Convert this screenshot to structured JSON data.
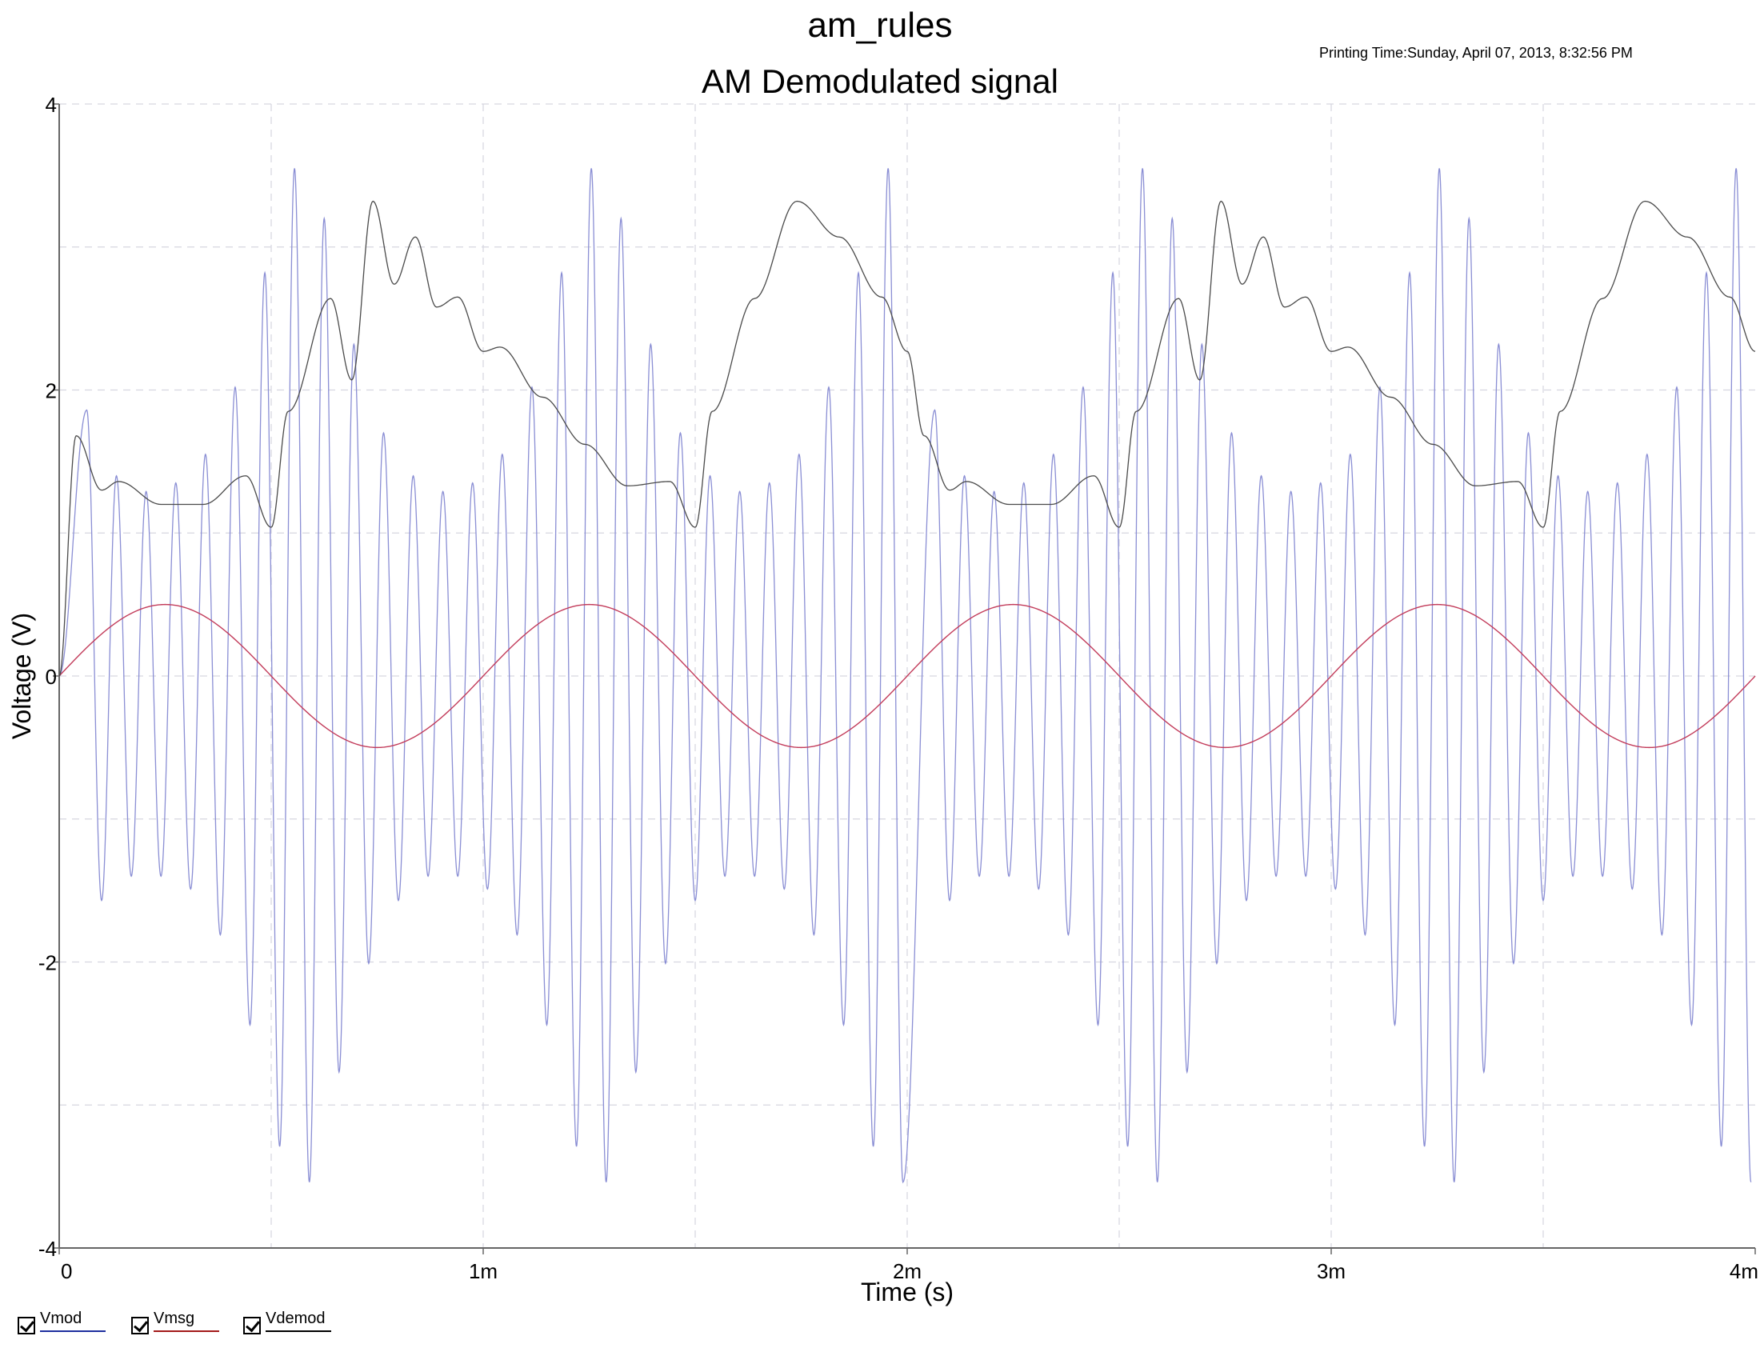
{
  "header": {
    "title": "am_rules",
    "printing_time": "Printing Time:Sunday, April 07, 2013, 8:32:56 PM"
  },
  "legend": [
    {
      "label": "Vmod",
      "color": "#1f2f9f",
      "checked": true
    },
    {
      "label": "Vmsg",
      "color": "#a31a1a",
      "checked": true
    },
    {
      "label": "Vdemod",
      "color": "#000000",
      "checked": true
    }
  ],
  "chart_data": {
    "type": "line",
    "title": "AM Demodulated signal",
    "xlabel": "Time (s)",
    "ylabel": "Voltage (V)",
    "xlim": [
      0,
      0.004
    ],
    "ylim": [
      -4,
      4
    ],
    "x_ticks": [
      {
        "value": 0,
        "label": "0"
      },
      {
        "value": 0.001,
        "label": "1m"
      },
      {
        "value": 0.002,
        "label": "2m"
      },
      {
        "value": 0.003,
        "label": "3m"
      },
      {
        "value": 0.004,
        "label": "4m"
      }
    ],
    "y_ticks": [
      {
        "value": 4,
        "label": "4"
      },
      {
        "value": 2,
        "label": "2"
      },
      {
        "value": 0,
        "label": "0"
      },
      {
        "value": -2,
        "label": "-2"
      },
      {
        "value": -4,
        "label": "-4"
      }
    ],
    "grid": true,
    "series": [
      {
        "name": "Vmod",
        "color": "#8a8ed4",
        "description": "carrier with 10 kHz components, amplitude-modulated by a 1 kHz message (period 1 ms)",
        "x": [
          0.0,
          0.0,
          0.0001,
          0.0001,
          0.0001,
          0.0001,
          0.0002,
          0.0002,
          0.0002,
          0.0003,
          0.0003,
          0.0003,
          0.0004,
          0.0004,
          0.0005,
          0.0005,
          0.0005,
          0.0006,
          0.0006,
          0.0006,
          0.0007,
          0.0007,
          0.0007,
          0.0008,
          0.0008,
          0.0008,
          0.0009,
          0.0009,
          0.0009,
          0.001,
          0.001,
          0.0011,
          0.0011,
          0.0011,
          0.0012,
          0.0012,
          0.0012,
          0.0013,
          0.0013,
          0.0014,
          0.0014,
          0.0014,
          0.0015,
          0.0015,
          0.0015,
          0.0016,
          0.0016,
          0.0016,
          0.0017,
          0.0017,
          0.0017,
          0.0018,
          0.0018,
          0.0018,
          0.0019,
          0.0019,
          0.002
        ],
        "y": [
          0.0,
          1.86,
          -1.57,
          1.4,
          -1.4,
          1.29,
          -1.4,
          1.35,
          -1.49,
          1.55,
          -1.81,
          2.02,
          -2.44,
          2.82,
          -3.29,
          3.55,
          -3.54,
          3.2,
          -2.77,
          2.32,
          -2.01,
          1.7,
          -1.57,
          1.4,
          -1.4,
          1.29,
          -1.4,
          1.35,
          -1.49,
          1.55,
          -1.81,
          2.02,
          -2.44,
          2.82,
          -3.29,
          3.55,
          -3.54,
          3.2,
          -2.77,
          2.32,
          -2.01,
          1.7,
          -1.57,
          1.4,
          -1.4,
          1.29,
          -1.4,
          1.35,
          -1.49,
          1.55,
          -1.81,
          2.02,
          -2.44,
          2.82,
          -3.29,
          3.55,
          -3.54
        ]
      },
      {
        "name": "Vmsg",
        "color": "#c23b5a",
        "description": "sine message",
        "x": [
          0.0,
          0.00025,
          0.0005,
          0.00075,
          0.001,
          0.00125,
          0.0015,
          0.00175,
          0.002,
          0.00225,
          0.0025,
          0.00275,
          0.003,
          0.00325,
          0.0035,
          0.00375,
          0.004
        ],
        "y": [
          0.0,
          0.5,
          0.0,
          -0.5,
          0.0,
          0.5,
          0.0,
          -0.5,
          0.0,
          0.5,
          0.0,
          -0.5,
          0.0,
          0.5,
          0.0,
          -0.5,
          0.0
        ]
      },
      {
        "name": "Vdemod",
        "color": "#4a4a4a",
        "description": "envelope detector output",
        "x": [
          0.0,
          4e-05,
          0.0001,
          0.00014,
          0.00024,
          0.00034,
          0.00044,
          0.0005,
          0.00054,
          0.00064,
          0.00069,
          0.00074,
          0.00079,
          0.00084,
          0.00089,
          0.00094,
          0.001,
          0.00104,
          0.00114,
          0.00124,
          0.00134,
          0.00144,
          0.0015,
          0.00154,
          0.00164,
          0.00174,
          0.00184,
          0.00194,
          0.002
        ],
        "y": [
          0.0,
          1.68,
          1.3,
          1.36,
          1.2,
          1.2,
          1.4,
          1.04,
          1.85,
          2.64,
          2.07,
          3.32,
          2.74,
          3.07,
          2.58,
          2.65,
          2.27,
          2.3,
          1.95,
          1.62,
          1.33,
          1.36,
          1.04,
          1.85,
          2.64,
          3.32,
          3.07,
          2.65,
          2.27
        ]
      }
    ]
  }
}
